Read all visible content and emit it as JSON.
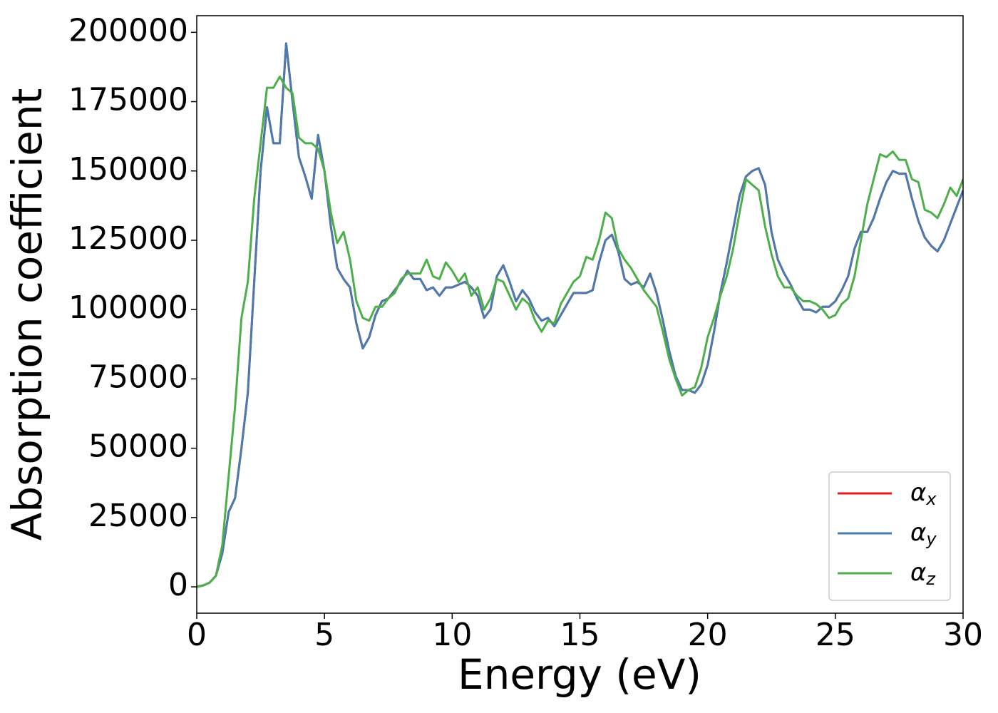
{
  "chart_data": {
    "type": "line",
    "x_label": "Energy (eV)",
    "y_label": "Absorption coefficient",
    "xlim": [
      0,
      30
    ],
    "ylim": [
      -9500,
      206000
    ],
    "xticks": [
      0,
      5,
      10,
      15,
      20,
      25,
      30
    ],
    "yticks": [
      0,
      25000,
      50000,
      75000,
      100000,
      125000,
      150000,
      175000,
      200000
    ],
    "legend": "lower right",
    "grid": false,
    "x": [
      0,
      0.25,
      0.5,
      0.75,
      1,
      1.25,
      1.5,
      1.75,
      2,
      2.25,
      2.5,
      2.75,
      3,
      3.25,
      3.5,
      3.75,
      4,
      4.25,
      4.5,
      4.75,
      5,
      5.25,
      5.5,
      5.75,
      6,
      6.25,
      6.5,
      6.75,
      7,
      7.25,
      7.5,
      7.75,
      8,
      8.25,
      8.5,
      8.75,
      9,
      9.25,
      9.5,
      9.75,
      10,
      10.25,
      10.5,
      10.75,
      11,
      11.25,
      11.5,
      11.75,
      12,
      12.25,
      12.5,
      12.75,
      13,
      13.25,
      13.5,
      13.75,
      14,
      14.25,
      14.5,
      14.75,
      15,
      15.25,
      15.5,
      15.75,
      16,
      16.25,
      16.5,
      16.75,
      17,
      17.25,
      17.5,
      17.75,
      18,
      18.25,
      18.5,
      18.75,
      19,
      19.25,
      19.5,
      19.75,
      20,
      20.25,
      20.5,
      20.75,
      21,
      21.25,
      21.5,
      21.75,
      22,
      22.25,
      22.5,
      22.75,
      23,
      23.25,
      23.5,
      23.75,
      24,
      24.25,
      24.5,
      24.75,
      25,
      25.25,
      25.5,
      25.75,
      26,
      26.25,
      26.5,
      26.75,
      27,
      27.25,
      27.5,
      27.75,
      28,
      28.25,
      28.5,
      28.75,
      29,
      29.25,
      29.5,
      29.75,
      30
    ],
    "series": [
      {
        "name": "αx",
        "color": "#e41a1c",
        "values": [
          0,
          500,
          1500,
          4000,
          12000,
          27000,
          32000,
          50000,
          70000,
          110000,
          150000,
          173000,
          160000,
          160000,
          196000,
          175000,
          155000,
          148000,
          140000,
          163000,
          150000,
          130000,
          115000,
          111000,
          108000,
          95000,
          86000,
          90000,
          98000,
          103000,
          104000,
          107000,
          110000,
          114000,
          111000,
          111000,
          107000,
          108000,
          105000,
          108000,
          108000,
          109000,
          110000,
          108000,
          105000,
          97000,
          100000,
          112000,
          116000,
          110000,
          103000,
          107000,
          104000,
          99000,
          96000,
          97000,
          94000,
          98000,
          102000,
          106000,
          106000,
          106000,
          107000,
          117000,
          125000,
          127000,
          121000,
          111000,
          109000,
          110000,
          108000,
          113000,
          106000,
          96000,
          85000,
          76000,
          71000,
          71000,
          70000,
          73000,
          80000,
          92000,
          106000,
          117000,
          129000,
          141000,
          148000,
          150000,
          151000,
          145000,
          128000,
          118000,
          113000,
          109000,
          104000,
          100000,
          100000,
          99000,
          101000,
          101000,
          103000,
          107000,
          112000,
          122000,
          128000,
          128000,
          133000,
          140000,
          146000,
          150000,
          149000,
          149000,
          140000,
          132000,
          126000,
          123000,
          121000,
          125000,
          131000,
          137000,
          143000
        ]
      },
      {
        "name": "αy",
        "color": "#4a7bb0",
        "values": [
          0,
          500,
          1500,
          4000,
          12000,
          27000,
          32000,
          50000,
          70000,
          110000,
          150000,
          173000,
          160000,
          160000,
          196000,
          175000,
          155000,
          148000,
          140000,
          163000,
          150000,
          130000,
          115000,
          111000,
          108000,
          95000,
          86000,
          90000,
          98000,
          103000,
          104000,
          107000,
          110000,
          114000,
          111000,
          111000,
          107000,
          108000,
          105000,
          108000,
          108000,
          109000,
          110000,
          108000,
          105000,
          97000,
          100000,
          112000,
          116000,
          110000,
          103000,
          107000,
          104000,
          99000,
          96000,
          97000,
          94000,
          98000,
          102000,
          106000,
          106000,
          106000,
          107000,
          117000,
          125000,
          127000,
          121000,
          111000,
          109000,
          110000,
          108000,
          113000,
          106000,
          96000,
          85000,
          76000,
          71000,
          71000,
          70000,
          73000,
          80000,
          92000,
          106000,
          117000,
          129000,
          141000,
          148000,
          150000,
          151000,
          145000,
          128000,
          118000,
          113000,
          109000,
          104000,
          100000,
          100000,
          99000,
          101000,
          101000,
          103000,
          107000,
          112000,
          122000,
          128000,
          128000,
          133000,
          140000,
          146000,
          150000,
          149000,
          149000,
          140000,
          132000,
          126000,
          123000,
          121000,
          125000,
          131000,
          137000,
          143000
        ]
      },
      {
        "name": "αz",
        "color": "#4daf4a",
        "values": [
          0,
          500,
          1500,
          4000,
          15000,
          40000,
          65000,
          97000,
          110000,
          140000,
          160000,
          180000,
          180000,
          184000,
          180000,
          178000,
          162000,
          160000,
          160000,
          158000,
          150000,
          135000,
          124000,
          128000,
          118000,
          103000,
          97000,
          96000,
          101000,
          101000,
          104000,
          106000,
          111000,
          113000,
          113000,
          113000,
          118000,
          112000,
          111000,
          117000,
          114000,
          110000,
          113000,
          105000,
          108000,
          100000,
          104000,
          111000,
          110000,
          105000,
          100000,
          104000,
          102000,
          96000,
          92000,
          96000,
          95000,
          102000,
          106000,
          110000,
          112000,
          119000,
          118000,
          125000,
          135000,
          133000,
          122000,
          118000,
          115000,
          111000,
          107000,
          104000,
          101000,
          92000,
          82000,
          75000,
          69000,
          71000,
          72000,
          79000,
          90000,
          97000,
          105000,
          112000,
          122000,
          135000,
          147000,
          145000,
          143000,
          130000,
          120000,
          112000,
          108000,
          108000,
          105000,
          103000,
          103000,
          102000,
          100000,
          97000,
          98000,
          102000,
          104000,
          112000,
          125000,
          138000,
          147000,
          156000,
          155000,
          157000,
          154000,
          154000,
          147000,
          146000,
          136000,
          135000,
          133000,
          138000,
          144000,
          141000,
          147000
        ]
      }
    ]
  }
}
